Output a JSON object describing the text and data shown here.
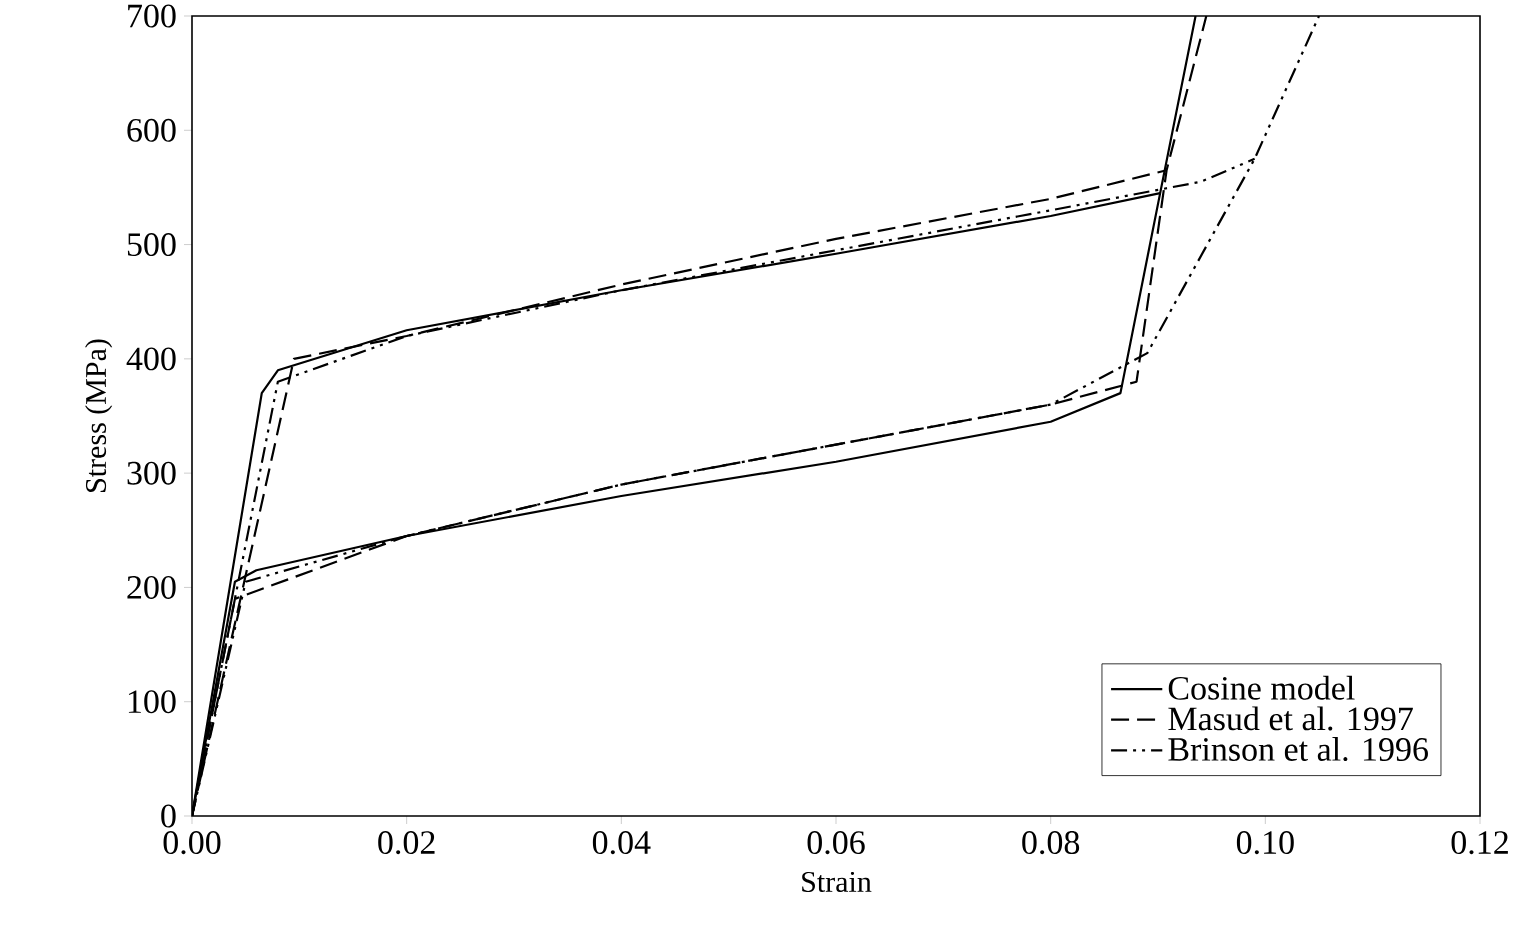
{
  "chart_data": {
    "type": "line",
    "xlabel": "Strain",
    "ylabel": "Stress (MPa)",
    "xlim": [
      0,
      0.12
    ],
    "ylim": [
      0,
      700
    ],
    "xticks": [
      {
        "value": 0,
        "label": "0.00"
      },
      {
        "value": 0.02,
        "label": "0.02"
      },
      {
        "value": 0.04,
        "label": "0.04"
      },
      {
        "value": 0.06,
        "label": "0.06"
      },
      {
        "value": 0.08,
        "label": "0.08"
      },
      {
        "value": 0.1,
        "label": "0.10"
      },
      {
        "value": 0.12,
        "label": "0.12"
      }
    ],
    "yticks": [
      0,
      100,
      200,
      300,
      400,
      500,
      600,
      700
    ],
    "legend": "bottom right",
    "marker": "none",
    "series": [
      {
        "name": "Cosine model",
        "color": "#000000",
        "line_style": "solid",
        "x": [
          0,
          0.0065,
          0.008,
          0.02,
          0.04,
          0.06,
          0.08,
          0.0902
        ],
        "values": [
          0,
          370,
          390,
          425,
          460,
          492,
          525,
          545
        ]
      },
      {
        "name": "Masud et al. 1997",
        "color": "#000000",
        "line_style": "dashed",
        "x": [
          0,
          0.0095,
          0.02,
          0.04,
          0.06,
          0.08,
          0.0908
        ],
        "values": [
          0,
          400,
          420,
          465,
          505,
          540,
          565
        ]
      },
      {
        "name": "Brinson et al. 1996",
        "color": "#000000",
        "line_style": "dashdotdot",
        "x": [
          0,
          0.008,
          0.02,
          0.04,
          0.06,
          0.08,
          0.094,
          0.099
        ],
        "values": [
          0,
          380,
          420,
          460,
          495,
          530,
          555,
          575
        ]
      },
      {
        "color": "#000000",
        "line_style": "solid",
        "x": [
          0,
          0.004,
          0.006,
          0.02,
          0.04,
          0.06,
          0.08,
          0.0865,
          0.0902,
          0.0935
        ],
        "values": [
          0,
          205,
          215,
          245,
          280,
          310,
          345,
          370,
          545,
          700
        ]
      },
      {
        "color": "#000000",
        "line_style": "dashed",
        "x": [
          0,
          0.004,
          0.02,
          0.04,
          0.06,
          0.08,
          0.088,
          0.0908,
          0.0945
        ],
        "values": [
          0,
          190,
          245,
          290,
          325,
          360,
          380,
          565,
          700
        ]
      },
      {
        "color": "#000000",
        "line_style": "dashdotdot",
        "x": [
          0,
          0.005,
          0.02,
          0.04,
          0.06,
          0.08,
          0.089,
          0.099,
          0.105
        ],
        "values": [
          0,
          205,
          245,
          290,
          325,
          360,
          405,
          575,
          700
        ]
      }
    ]
  }
}
